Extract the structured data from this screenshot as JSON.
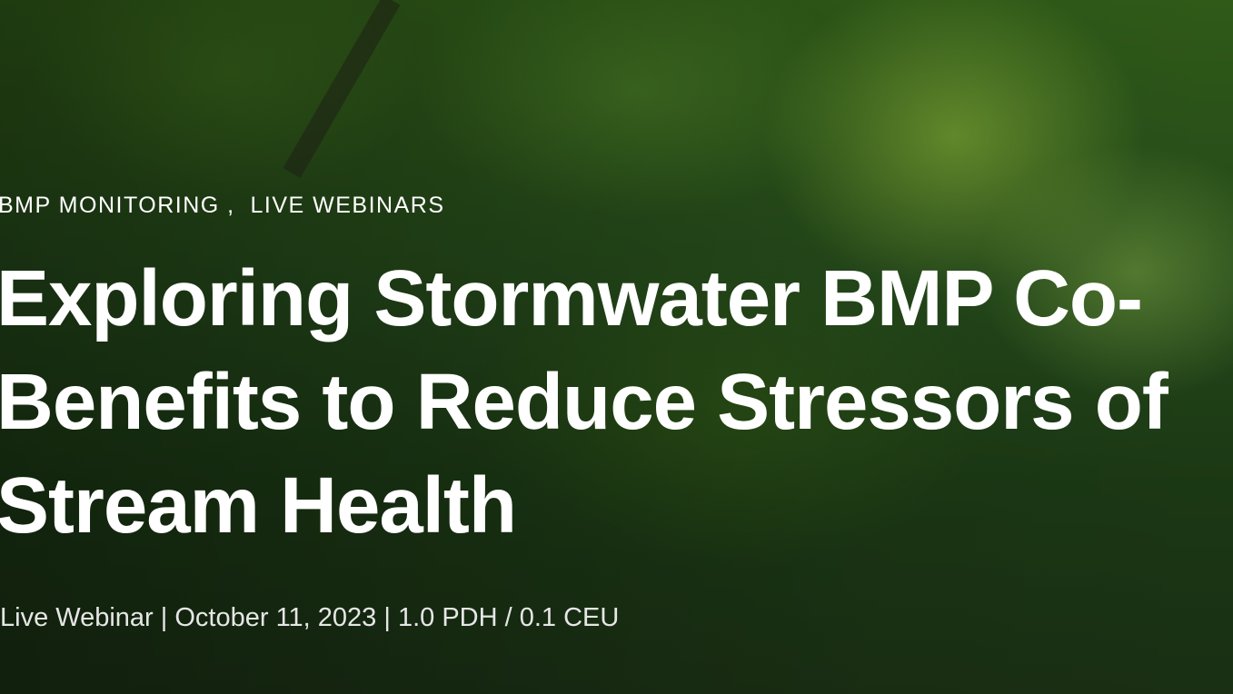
{
  "hero": {
    "categories": [
      "BMP MONITORING",
      "LIVE WEBINARS"
    ],
    "category_separator": " ,  ",
    "title_lines": [
      "Exploring Stormwater BMP Co-",
      "Benefits to Reduce Stressors of",
      "Stream Health"
    ],
    "meta": "Live Webinar | October 11, 2023 | 1.0 PDH / 0.1 CEU"
  }
}
